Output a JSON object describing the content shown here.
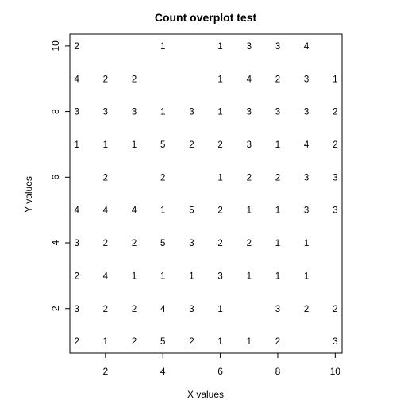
{
  "chart_data": {
    "type": "scatter",
    "title": "Count overplot test",
    "xlabel": "X values",
    "ylabel": "Y values",
    "xlim": [
      0.76,
      10.24
    ],
    "ylim": [
      0.64,
      10.36
    ],
    "xticks": [
      2,
      4,
      6,
      8,
      10
    ],
    "yticks": [
      2,
      4,
      6,
      8,
      10
    ],
    "grid": false,
    "legend": "none",
    "marker": "count text",
    "points": [
      {
        "x": 1,
        "y": 10,
        "count": 2
      },
      {
        "x": 4,
        "y": 10,
        "count": 1
      },
      {
        "x": 6,
        "y": 10,
        "count": 1
      },
      {
        "x": 7,
        "y": 10,
        "count": 3
      },
      {
        "x": 8,
        "y": 10,
        "count": 3
      },
      {
        "x": 9,
        "y": 10,
        "count": 4
      },
      {
        "x": 1,
        "y": 9,
        "count": 4
      },
      {
        "x": 2,
        "y": 9,
        "count": 2
      },
      {
        "x": 3,
        "y": 9,
        "count": 2
      },
      {
        "x": 6,
        "y": 9,
        "count": 1
      },
      {
        "x": 7,
        "y": 9,
        "count": 4
      },
      {
        "x": 8,
        "y": 9,
        "count": 2
      },
      {
        "x": 9,
        "y": 9,
        "count": 3
      },
      {
        "x": 10,
        "y": 9,
        "count": 1
      },
      {
        "x": 1,
        "y": 8,
        "count": 3
      },
      {
        "x": 2,
        "y": 8,
        "count": 3
      },
      {
        "x": 3,
        "y": 8,
        "count": 3
      },
      {
        "x": 4,
        "y": 8,
        "count": 1
      },
      {
        "x": 5,
        "y": 8,
        "count": 3
      },
      {
        "x": 6,
        "y": 8,
        "count": 1
      },
      {
        "x": 7,
        "y": 8,
        "count": 3
      },
      {
        "x": 8,
        "y": 8,
        "count": 3
      },
      {
        "x": 9,
        "y": 8,
        "count": 3
      },
      {
        "x": 10,
        "y": 8,
        "count": 2
      },
      {
        "x": 1,
        "y": 7,
        "count": 1
      },
      {
        "x": 2,
        "y": 7,
        "count": 1
      },
      {
        "x": 3,
        "y": 7,
        "count": 1
      },
      {
        "x": 4,
        "y": 7,
        "count": 5
      },
      {
        "x": 5,
        "y": 7,
        "count": 2
      },
      {
        "x": 6,
        "y": 7,
        "count": 2
      },
      {
        "x": 7,
        "y": 7,
        "count": 3
      },
      {
        "x": 8,
        "y": 7,
        "count": 1
      },
      {
        "x": 9,
        "y": 7,
        "count": 4
      },
      {
        "x": 10,
        "y": 7,
        "count": 2
      },
      {
        "x": 2,
        "y": 6,
        "count": 2
      },
      {
        "x": 4,
        "y": 6,
        "count": 2
      },
      {
        "x": 6,
        "y": 6,
        "count": 1
      },
      {
        "x": 7,
        "y": 6,
        "count": 2
      },
      {
        "x": 8,
        "y": 6,
        "count": 2
      },
      {
        "x": 9,
        "y": 6,
        "count": 3
      },
      {
        "x": 10,
        "y": 6,
        "count": 3
      },
      {
        "x": 1,
        "y": 5,
        "count": 4
      },
      {
        "x": 2,
        "y": 5,
        "count": 4
      },
      {
        "x": 3,
        "y": 5,
        "count": 4
      },
      {
        "x": 4,
        "y": 5,
        "count": 1
      },
      {
        "x": 5,
        "y": 5,
        "count": 5
      },
      {
        "x": 6,
        "y": 5,
        "count": 2
      },
      {
        "x": 7,
        "y": 5,
        "count": 1
      },
      {
        "x": 8,
        "y": 5,
        "count": 1
      },
      {
        "x": 9,
        "y": 5,
        "count": 3
      },
      {
        "x": 10,
        "y": 5,
        "count": 3
      },
      {
        "x": 1,
        "y": 4,
        "count": 3
      },
      {
        "x": 2,
        "y": 4,
        "count": 2
      },
      {
        "x": 3,
        "y": 4,
        "count": 2
      },
      {
        "x": 4,
        "y": 4,
        "count": 5
      },
      {
        "x": 5,
        "y": 4,
        "count": 3
      },
      {
        "x": 6,
        "y": 4,
        "count": 2
      },
      {
        "x": 7,
        "y": 4,
        "count": 2
      },
      {
        "x": 8,
        "y": 4,
        "count": 1
      },
      {
        "x": 9,
        "y": 4,
        "count": 1
      },
      {
        "x": 1,
        "y": 3,
        "count": 2
      },
      {
        "x": 2,
        "y": 3,
        "count": 4
      },
      {
        "x": 3,
        "y": 3,
        "count": 1
      },
      {
        "x": 4,
        "y": 3,
        "count": 1
      },
      {
        "x": 5,
        "y": 3,
        "count": 1
      },
      {
        "x": 6,
        "y": 3,
        "count": 3
      },
      {
        "x": 7,
        "y": 3,
        "count": 1
      },
      {
        "x": 8,
        "y": 3,
        "count": 1
      },
      {
        "x": 9,
        "y": 3,
        "count": 1
      },
      {
        "x": 1,
        "y": 2,
        "count": 3
      },
      {
        "x": 2,
        "y": 2,
        "count": 2
      },
      {
        "x": 3,
        "y": 2,
        "count": 2
      },
      {
        "x": 4,
        "y": 2,
        "count": 4
      },
      {
        "x": 5,
        "y": 2,
        "count": 3
      },
      {
        "x": 6,
        "y": 2,
        "count": 1
      },
      {
        "x": 8,
        "y": 2,
        "count": 3
      },
      {
        "x": 9,
        "y": 2,
        "count": 2
      },
      {
        "x": 10,
        "y": 2,
        "count": 2
      },
      {
        "x": 1,
        "y": 1,
        "count": 2
      },
      {
        "x": 2,
        "y": 1,
        "count": 1
      },
      {
        "x": 3,
        "y": 1,
        "count": 2
      },
      {
        "x": 4,
        "y": 1,
        "count": 5
      },
      {
        "x": 5,
        "y": 1,
        "count": 2
      },
      {
        "x": 6,
        "y": 1,
        "count": 1
      },
      {
        "x": 7,
        "y": 1,
        "count": 1
      },
      {
        "x": 8,
        "y": 1,
        "count": 2
      },
      {
        "x": 10,
        "y": 1,
        "count": 3
      }
    ]
  }
}
